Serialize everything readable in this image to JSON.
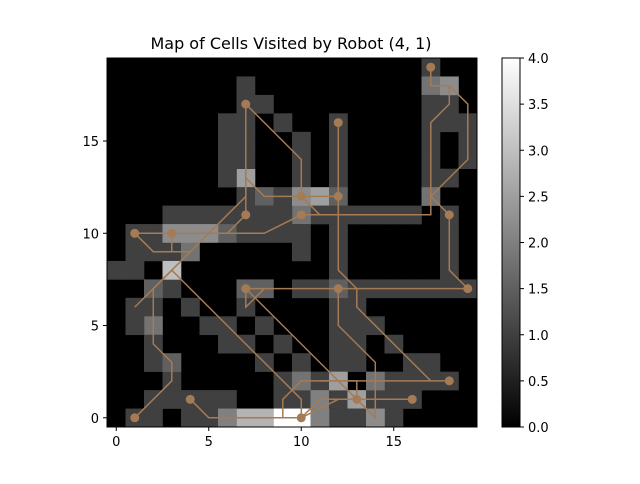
{
  "chart_data": {
    "type": "heatmap",
    "title": "Map of Cells Visited by Robot (4, 1)",
    "xlabel": "",
    "ylabel": "",
    "grid": false,
    "colormap": "gray",
    "x_range": [
      -0.5,
      19.5
    ],
    "y_range": [
      -0.5,
      19.5
    ],
    "x_ticks": [
      0,
      5,
      10,
      15
    ],
    "y_ticks": [
      0,
      5,
      10,
      15
    ],
    "colorbar": {
      "min": 0.0,
      "max": 4.0,
      "ticks": [
        "0.0",
        "0.5",
        "1.0",
        "1.5",
        "2.0",
        "2.5",
        "3.0",
        "3.5",
        "4.0"
      ],
      "position": "right"
    },
    "cells": [
      [
        0,
        8,
        1
      ],
      [
        1,
        8,
        1
      ],
      [
        1,
        9,
        1
      ],
      [
        7,
        13,
        1
      ],
      [
        7,
        14,
        1
      ],
      [
        7,
        15,
        1
      ],
      [
        7,
        16,
        1
      ],
      [
        7,
        17,
        1
      ],
      [
        7,
        18,
        1
      ],
      [
        8,
        17,
        1
      ],
      [
        9,
        16,
        1
      ],
      [
        10,
        15,
        1
      ],
      [
        10,
        14,
        1
      ],
      [
        10,
        13,
        1
      ],
      [
        6,
        13,
        1
      ],
      [
        6,
        14,
        1
      ],
      [
        6,
        15,
        1
      ],
      [
        6,
        16,
        1
      ],
      [
        7,
        12,
        1
      ],
      [
        7,
        11,
        1
      ],
      [
        8,
        12,
        1
      ],
      [
        9,
        12,
        1
      ],
      [
        11,
        12,
        1
      ],
      [
        11,
        11,
        1
      ],
      [
        10,
        11,
        1
      ],
      [
        9,
        11,
        1
      ],
      [
        8,
        11,
        1
      ],
      [
        10,
        10,
        1
      ],
      [
        9,
        10,
        1
      ],
      [
        12,
        16,
        1
      ],
      [
        12,
        15,
        1
      ],
      [
        12,
        14,
        1
      ],
      [
        12,
        13,
        1
      ],
      [
        12,
        12,
        1
      ],
      [
        12,
        11,
        1
      ],
      [
        12,
        10,
        1
      ],
      [
        12,
        9,
        1
      ],
      [
        12,
        8,
        1
      ],
      [
        13,
        11,
        1
      ],
      [
        14,
        11,
        1
      ],
      [
        15,
        11,
        1
      ],
      [
        16,
        11,
        1
      ],
      [
        13,
        7,
        1
      ],
      [
        14,
        7,
        1
      ],
      [
        15,
        7,
        1
      ],
      [
        16,
        7,
        1
      ],
      [
        17,
        7,
        1
      ],
      [
        18,
        7,
        1
      ],
      [
        19,
        7,
        1
      ],
      [
        17,
        19,
        1
      ],
      [
        17,
        18,
        1
      ],
      [
        17,
        17,
        1
      ],
      [
        17,
        16,
        1
      ],
      [
        17,
        15,
        1
      ],
      [
        17,
        14,
        1
      ],
      [
        17,
        13,
        1
      ],
      [
        18,
        17,
        1
      ],
      [
        18,
        16,
        1
      ],
      [
        19,
        16,
        1
      ],
      [
        19,
        15,
        1
      ],
      [
        19,
        14,
        1
      ],
      [
        18,
        13,
        1
      ],
      [
        18,
        11,
        1
      ],
      [
        18,
        10,
        1
      ],
      [
        18,
        9,
        1
      ],
      [
        18,
        8,
        1
      ],
      [
        17,
        12,
        1
      ],
      [
        3,
        11,
        1
      ],
      [
        4,
        11,
        1
      ],
      [
        5,
        11,
        1
      ],
      [
        6,
        11,
        1
      ],
      [
        6,
        10,
        1
      ],
      [
        7,
        10,
        1
      ],
      [
        8,
        10,
        1
      ],
      [
        5,
        10,
        1
      ],
      [
        1,
        10,
        1
      ],
      [
        2,
        10,
        1
      ],
      [
        2,
        9,
        1
      ],
      [
        3,
        9,
        1
      ],
      [
        4,
        9,
        1
      ],
      [
        4,
        10,
        1
      ],
      [
        3,
        7,
        1
      ],
      [
        4,
        6,
        1
      ],
      [
        5,
        5,
        1
      ],
      [
        6,
        5,
        1
      ],
      [
        6,
        4,
        1
      ],
      [
        7,
        4,
        1
      ],
      [
        8,
        3,
        1
      ],
      [
        9,
        2,
        1
      ],
      [
        10,
        1,
        1
      ],
      [
        2,
        7,
        1
      ],
      [
        2,
        6,
        1
      ],
      [
        2,
        5,
        1
      ],
      [
        2,
        4,
        1
      ],
      [
        1,
        6,
        1
      ],
      [
        1,
        5,
        1
      ],
      [
        2,
        3,
        1
      ],
      [
        3,
        2,
        1
      ],
      [
        4,
        1,
        1
      ],
      [
        7,
        6,
        1
      ],
      [
        8,
        5,
        1
      ],
      [
        9,
        4,
        1
      ],
      [
        10,
        3,
        1
      ],
      [
        11,
        2,
        1
      ],
      [
        11,
        1,
        1
      ],
      [
        12,
        1,
        1
      ],
      [
        13,
        1,
        1
      ],
      [
        14,
        1,
        1
      ],
      [
        15,
        1,
        1
      ],
      [
        16,
        1,
        1
      ],
      [
        12,
        0,
        1
      ],
      [
        13,
        0,
        1
      ],
      [
        15,
        0,
        1
      ],
      [
        10,
        7,
        1
      ],
      [
        11,
        7,
        1
      ],
      [
        12,
        6,
        1
      ],
      [
        12,
        5,
        1
      ],
      [
        12,
        4,
        1
      ],
      [
        12,
        3,
        1
      ],
      [
        12,
        2,
        1
      ],
      [
        13,
        6,
        1
      ],
      [
        13,
        5,
        1
      ],
      [
        13,
        4,
        1
      ],
      [
        13,
        3,
        1
      ],
      [
        14,
        5,
        1
      ],
      [
        15,
        4,
        1
      ],
      [
        16,
        3,
        1
      ],
      [
        17,
        3,
        1
      ],
      [
        17,
        2,
        1
      ],
      [
        16,
        2,
        1
      ],
      [
        15,
        2,
        1
      ],
      [
        14,
        2,
        1
      ],
      [
        18,
        2,
        1
      ],
      [
        1,
        0,
        1
      ],
      [
        2,
        0,
        1
      ],
      [
        2,
        1,
        1
      ],
      [
        3,
        1,
        1
      ],
      [
        5,
        0,
        1
      ],
      [
        5,
        1,
        1
      ],
      [
        6,
        1,
        1
      ],
      [
        4,
        0,
        1
      ],
      [
        9,
        1,
        1
      ],
      [
        9,
        0,
        1
      ],
      [
        7,
        7,
        1.5
      ],
      [
        8,
        7,
        1.5
      ],
      [
        12,
        7,
        1.5
      ],
      [
        2,
        7,
        1.5
      ],
      [
        1,
        9,
        1
      ],
      [
        10,
        9,
        1
      ],
      [
        3,
        10,
        2.2
      ],
      [
        4,
        10,
        2.2
      ],
      [
        5,
        10,
        2.2
      ],
      [
        6,
        10,
        1.5
      ],
      [
        8,
        12,
        1.5
      ],
      [
        11,
        12,
        2.5
      ],
      [
        12,
        12,
        1.5
      ],
      [
        10,
        11,
        1.8
      ],
      [
        7,
        13,
        2.5
      ],
      [
        17,
        12,
        1.8
      ],
      [
        18,
        18,
        2.2
      ],
      [
        17,
        18,
        1.8
      ],
      [
        3,
        8,
        3
      ],
      [
        2,
        5,
        1.8
      ],
      [
        3,
        3,
        1.5
      ],
      [
        7,
        0,
        2.8
      ],
      [
        8,
        0,
        2.8
      ],
      [
        10,
        0,
        4
      ],
      [
        10,
        2,
        1.8
      ],
      [
        12,
        2,
        2.5
      ],
      [
        13,
        1,
        2.5
      ],
      [
        14,
        0,
        2.2
      ],
      [
        14,
        2,
        1.8
      ],
      [
        4,
        9,
        1.8
      ],
      [
        6,
        0,
        2
      ],
      [
        11,
        0,
        2
      ],
      [
        11,
        1,
        2
      ],
      [
        10,
        12,
        2.2
      ],
      [
        9,
        0,
        4
      ]
    ],
    "path": [
      [
        17,
        19
      ],
      [
        17,
        18
      ],
      [
        18,
        18
      ],
      [
        19,
        17
      ],
      [
        19,
        14
      ],
      [
        18,
        13
      ],
      [
        17,
        12
      ],
      [
        17,
        11
      ],
      [
        16,
        11
      ],
      [
        12,
        11
      ],
      [
        10,
        11
      ],
      [
        8,
        10
      ],
      [
        3,
        10
      ],
      [
        1,
        10
      ],
      [
        3,
        10
      ],
      [
        6,
        10
      ],
      [
        7,
        11
      ],
      [
        7,
        17
      ],
      [
        10,
        14
      ],
      [
        10,
        12
      ],
      [
        12,
        12
      ],
      [
        12,
        16
      ],
      [
        12,
        8
      ],
      [
        13,
        7
      ],
      [
        18,
        7
      ],
      [
        19,
        7
      ],
      [
        18,
        8
      ],
      [
        18,
        11
      ],
      [
        17,
        12
      ],
      [
        17,
        16
      ],
      [
        18,
        17
      ],
      [
        18,
        18
      ]
    ],
    "path2": [
      [
        1,
        0
      ],
      [
        3,
        2
      ],
      [
        3,
        3
      ],
      [
        2,
        4
      ],
      [
        2,
        7
      ],
      [
        3,
        8
      ],
      [
        7,
        12
      ],
      [
        7,
        13
      ],
      [
        8,
        12
      ],
      [
        10,
        12
      ],
      [
        11,
        11
      ],
      [
        12,
        11
      ],
      [
        12,
        12
      ]
    ],
    "path3": [
      [
        1,
        6
      ],
      [
        2,
        7
      ],
      [
        3,
        8
      ],
      [
        7,
        4
      ],
      [
        8,
        3
      ],
      [
        10,
        1
      ],
      [
        10,
        0
      ],
      [
        12,
        1
      ],
      [
        13,
        1
      ],
      [
        15,
        1
      ],
      [
        16,
        1
      ]
    ],
    "path4": [
      [
        4,
        1
      ],
      [
        5,
        0
      ],
      [
        6,
        0
      ],
      [
        7,
        0
      ],
      [
        10,
        0
      ],
      [
        11,
        1
      ],
      [
        13,
        1
      ],
      [
        14,
        0
      ],
      [
        14,
        3
      ],
      [
        12,
        5
      ],
      [
        12,
        7
      ],
      [
        13,
        7
      ],
      [
        13,
        6
      ],
      [
        15,
        4
      ],
      [
        17,
        2
      ],
      [
        18,
        2
      ],
      [
        11,
        2
      ],
      [
        10,
        2
      ],
      [
        9,
        1
      ],
      [
        9,
        0
      ]
    ],
    "path5": [
      [
        7,
        7
      ],
      [
        7,
        6
      ],
      [
        8,
        7
      ],
      [
        9,
        7
      ],
      [
        12,
        7
      ],
      [
        7,
        7
      ],
      [
        10,
        4
      ],
      [
        13,
        1
      ],
      [
        13,
        2
      ],
      [
        12,
        2
      ],
      [
        11,
        2
      ]
    ],
    "path6": [
      [
        1,
        10
      ],
      [
        3,
        10
      ],
      [
        3,
        9
      ],
      [
        4,
        9
      ],
      [
        2,
        9
      ],
      [
        1,
        10
      ]
    ],
    "markers": [
      [
        17,
        19
      ],
      [
        7,
        17
      ],
      [
        12,
        16
      ],
      [
        10,
        12
      ],
      [
        12,
        12
      ],
      [
        7,
        11
      ],
      [
        10,
        11
      ],
      [
        18,
        11
      ],
      [
        1,
        10
      ],
      [
        3,
        10
      ],
      [
        7,
        7
      ],
      [
        12,
        7
      ],
      [
        19,
        7
      ],
      [
        18,
        2
      ],
      [
        4,
        1
      ],
      [
        13,
        1
      ],
      [
        16,
        1
      ],
      [
        1,
        0
      ],
      [
        10,
        0
      ]
    ]
  }
}
